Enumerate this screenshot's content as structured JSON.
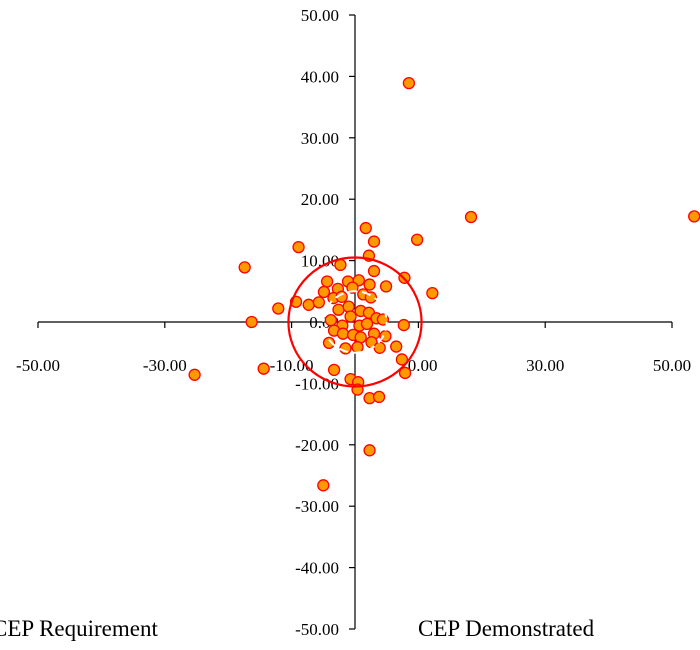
{
  "chart_data": {
    "type": "scatter",
    "title": "",
    "xlabel": "",
    "ylabel": "",
    "xlim": [
      -50,
      50
    ],
    "ylim": [
      -50,
      50
    ],
    "grid": false,
    "x_ticks": [
      -50,
      -30,
      -10,
      10,
      30,
      50
    ],
    "x_tick_labels": [
      "-50.00",
      "-30.00",
      "-10.00",
      "10.00",
      "30.00",
      "50.00"
    ],
    "y_ticks": [
      50,
      40,
      30,
      20,
      10,
      0,
      -10,
      -20,
      -30,
      -40,
      -50
    ],
    "y_tick_labels": [
      "50.00",
      "40.00",
      "30.00",
      "20.00",
      "10.00",
      "0.00",
      "-10.00",
      "-20.00",
      "-30.00",
      "-40.00",
      "-50.00"
    ],
    "marker_fill": "#FF9900",
    "marker_edge": "#FF0000",
    "series": [
      {
        "points": [
          [
            8.5,
            38.9
          ],
          [
            18.3,
            17.1
          ],
          [
            53.5,
            17.2
          ],
          [
            1.7,
            15.3
          ],
          [
            9.8,
            13.4
          ],
          [
            3.0,
            13.1
          ],
          [
            -8.9,
            12.2
          ],
          [
            2.2,
            10.8
          ],
          [
            -17.4,
            8.9
          ],
          [
            -2.3,
            9.3
          ],
          [
            3.0,
            8.3
          ],
          [
            7.8,
            7.2
          ],
          [
            12.2,
            4.7
          ],
          [
            -4.4,
            6.6
          ],
          [
            -1.1,
            6.6
          ],
          [
            0.6,
            6.8
          ],
          [
            2.3,
            6.1
          ],
          [
            -2.7,
            5.4
          ],
          [
            -4.9,
            4.9
          ],
          [
            4.9,
            5.8
          ],
          [
            -12.1,
            2.2
          ],
          [
            -9.3,
            3.3
          ],
          [
            -7.3,
            2.8
          ],
          [
            -5.7,
            3.2
          ],
          [
            -3.4,
            3.9
          ],
          [
            -2.1,
            4.1
          ],
          [
            -0.4,
            5.6
          ],
          [
            1.3,
            4.5
          ],
          [
            2.5,
            4.0
          ],
          [
            -2.6,
            2.0
          ],
          [
            -1.0,
            2.5
          ],
          [
            0.9,
            1.8
          ],
          [
            2.2,
            1.5
          ],
          [
            3.4,
            0.6
          ],
          [
            -16.3,
            0.0
          ],
          [
            -3.8,
            0.3
          ],
          [
            -2.0,
            -0.6
          ],
          [
            -0.7,
            0.9
          ],
          [
            0.7,
            -0.6
          ],
          [
            1.9,
            -0.3
          ],
          [
            4.4,
            0.4
          ],
          [
            7.7,
            -0.5
          ],
          [
            -3.3,
            -1.4
          ],
          [
            -1.9,
            -1.9
          ],
          [
            -0.3,
            -2.1
          ],
          [
            0.9,
            -2.5
          ],
          [
            3.0,
            -1.9
          ],
          [
            4.8,
            -2.3
          ],
          [
            -4.1,
            -3.4
          ],
          [
            -1.5,
            -4.3
          ],
          [
            0.4,
            -4.1
          ],
          [
            2.6,
            -3.3
          ],
          [
            3.9,
            -4.2
          ],
          [
            6.5,
            -4.0
          ],
          [
            -25.3,
            -8.6
          ],
          [
            -14.4,
            -7.6
          ],
          [
            -3.3,
            -7.8
          ],
          [
            -0.7,
            -9.3
          ],
          [
            0.5,
            -9.8
          ],
          [
            7.4,
            -6.1
          ],
          [
            7.9,
            -8.3
          ],
          [
            0.4,
            -11.0
          ],
          [
            2.3,
            -12.4
          ],
          [
            3.8,
            -12.2
          ],
          [
            2.3,
            -20.9
          ],
          [
            -5.0,
            -26.6
          ]
        ]
      }
    ],
    "circles": [
      {
        "legend": "CEP Requirement",
        "radius": 10.5,
        "color": "#FF0000",
        "dashed": false
      },
      {
        "legend": "CEP Demonstrated",
        "radius": 5.0,
        "color": "#FFFFFF",
        "dashed": true
      }
    ]
  }
}
